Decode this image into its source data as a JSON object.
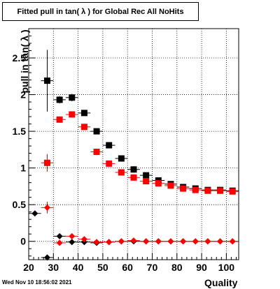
{
  "chart_data": {
    "type": "scatter",
    "title": "Fitted pull in tan( λ ) for Global Rec All NoHits",
    "xlabel": "Quality",
    "ylabel": "pull in tan( λ )",
    "xlim": [
      20,
      105
    ],
    "ylim": [
      -0.25,
      2.9
    ],
    "xticks": [
      20,
      30,
      40,
      50,
      60,
      70,
      80,
      90,
      100
    ],
    "yticks": [
      0,
      0.5,
      1,
      1.5,
      2,
      2.5
    ],
    "grid": true,
    "series": [
      {
        "marker": "square",
        "color": "#000000",
        "points": [
          {
            "x": 27.5,
            "y": 2.19,
            "err": 0.42
          },
          {
            "x": 32.5,
            "y": 1.93,
            "err": 0.05
          },
          {
            "x": 37.5,
            "y": 1.96,
            "err": 0.05
          },
          {
            "x": 42.5,
            "y": 1.75,
            "err": 0.03
          },
          {
            "x": 47.5,
            "y": 1.5,
            "err": 0.02
          },
          {
            "x": 52.5,
            "y": 1.31,
            "err": 0.02
          },
          {
            "x": 57.5,
            "y": 1.13,
            "err": 0.02
          },
          {
            "x": 62.5,
            "y": 0.98,
            "err": 0.02
          },
          {
            "x": 67.5,
            "y": 0.9,
            "err": 0.02
          },
          {
            "x": 72.5,
            "y": 0.83,
            "err": 0.02
          },
          {
            "x": 77.5,
            "y": 0.78,
            "err": 0.02
          },
          {
            "x": 82.5,
            "y": 0.74,
            "err": 0.02
          },
          {
            "x": 87.5,
            "y": 0.72,
            "err": 0.02
          },
          {
            "x": 92.5,
            "y": 0.7,
            "err": 0.02
          },
          {
            "x": 97.5,
            "y": 0.7,
            "err": 0.02
          },
          {
            "x": 102.5,
            "y": 0.69,
            "err": 0.02
          }
        ]
      },
      {
        "marker": "square",
        "color": "#ff0000",
        "points": [
          {
            "x": 27.5,
            "y": 1.07,
            "err": 0.12
          },
          {
            "x": 32.5,
            "y": 1.66,
            "err": 0.04
          },
          {
            "x": 37.5,
            "y": 1.73,
            "err": 0.04
          },
          {
            "x": 42.5,
            "y": 1.56,
            "err": 0.02
          },
          {
            "x": 47.5,
            "y": 1.22,
            "err": 0.02
          },
          {
            "x": 52.5,
            "y": 1.06,
            "err": 0.02
          },
          {
            "x": 57.5,
            "y": 0.94,
            "err": 0.02
          },
          {
            "x": 62.5,
            "y": 0.87,
            "err": 0.02
          },
          {
            "x": 67.5,
            "y": 0.82,
            "err": 0.02
          },
          {
            "x": 72.5,
            "y": 0.79,
            "err": 0.02
          },
          {
            "x": 77.5,
            "y": 0.76,
            "err": 0.02
          },
          {
            "x": 82.5,
            "y": 0.72,
            "err": 0.02
          },
          {
            "x": 87.5,
            "y": 0.7,
            "err": 0.02
          },
          {
            "x": 92.5,
            "y": 0.69,
            "err": 0.02
          },
          {
            "x": 97.5,
            "y": 0.69,
            "err": 0.02
          },
          {
            "x": 102.5,
            "y": 0.68,
            "err": 0.02
          }
        ]
      },
      {
        "marker": "diamond",
        "color": "#000000",
        "points": [
          {
            "x": 22.5,
            "y": 0.38,
            "err": 0.0
          },
          {
            "x": 27.5,
            "y": -0.22,
            "err": 0.0
          },
          {
            "x": 32.5,
            "y": 0.07,
            "err": 0.0
          },
          {
            "x": 37.5,
            "y": -0.01,
            "err": 0.0
          },
          {
            "x": 42.5,
            "y": -0.01,
            "err": 0.0
          },
          {
            "x": 47.5,
            "y": -0.02,
            "err": 0.0
          },
          {
            "x": 52.5,
            "y": -0.01,
            "err": 0.0
          },
          {
            "x": 57.5,
            "y": 0.0,
            "err": 0.0
          },
          {
            "x": 62.5,
            "y": 0.0,
            "err": 0.0
          },
          {
            "x": 67.5,
            "y": 0.0,
            "err": 0.0
          },
          {
            "x": 72.5,
            "y": 0.0,
            "err": 0.0
          },
          {
            "x": 77.5,
            "y": 0.0,
            "err": 0.0
          },
          {
            "x": 82.5,
            "y": 0.0,
            "err": 0.0
          },
          {
            "x": 87.5,
            "y": 0.0,
            "err": 0.0
          },
          {
            "x": 92.5,
            "y": 0.0,
            "err": 0.0
          },
          {
            "x": 97.5,
            "y": 0.0,
            "err": 0.0
          },
          {
            "x": 102.5,
            "y": 0.0,
            "err": 0.0
          }
        ]
      },
      {
        "marker": "diamond",
        "color": "#ff0000",
        "points": [
          {
            "x": 27.5,
            "y": 0.46,
            "err": 0.08
          },
          {
            "x": 32.5,
            "y": -0.02,
            "err": 0.03
          },
          {
            "x": 37.5,
            "y": 0.07,
            "err": 0.02
          },
          {
            "x": 42.5,
            "y": 0.03,
            "err": 0.01
          },
          {
            "x": 47.5,
            "y": -0.01,
            "err": 0.01
          },
          {
            "x": 52.5,
            "y": -0.01,
            "err": 0.01
          },
          {
            "x": 57.5,
            "y": 0.0,
            "err": 0.01
          },
          {
            "x": 62.5,
            "y": 0.01,
            "err": 0.01
          },
          {
            "x": 67.5,
            "y": 0.0,
            "err": 0.01
          },
          {
            "x": 72.5,
            "y": 0.0,
            "err": 0.01
          },
          {
            "x": 77.5,
            "y": 0.0,
            "err": 0.01
          },
          {
            "x": 82.5,
            "y": 0.0,
            "err": 0.01
          },
          {
            "x": 87.5,
            "y": 0.0,
            "err": 0.01
          },
          {
            "x": 92.5,
            "y": 0.0,
            "err": 0.01
          },
          {
            "x": 97.5,
            "y": 0.0,
            "err": 0.01
          },
          {
            "x": 102.5,
            "y": 0.0,
            "err": 0.01
          }
        ]
      }
    ]
  },
  "footer": {
    "timestamp": "Wed Nov 10 18:56:02 2021"
  }
}
